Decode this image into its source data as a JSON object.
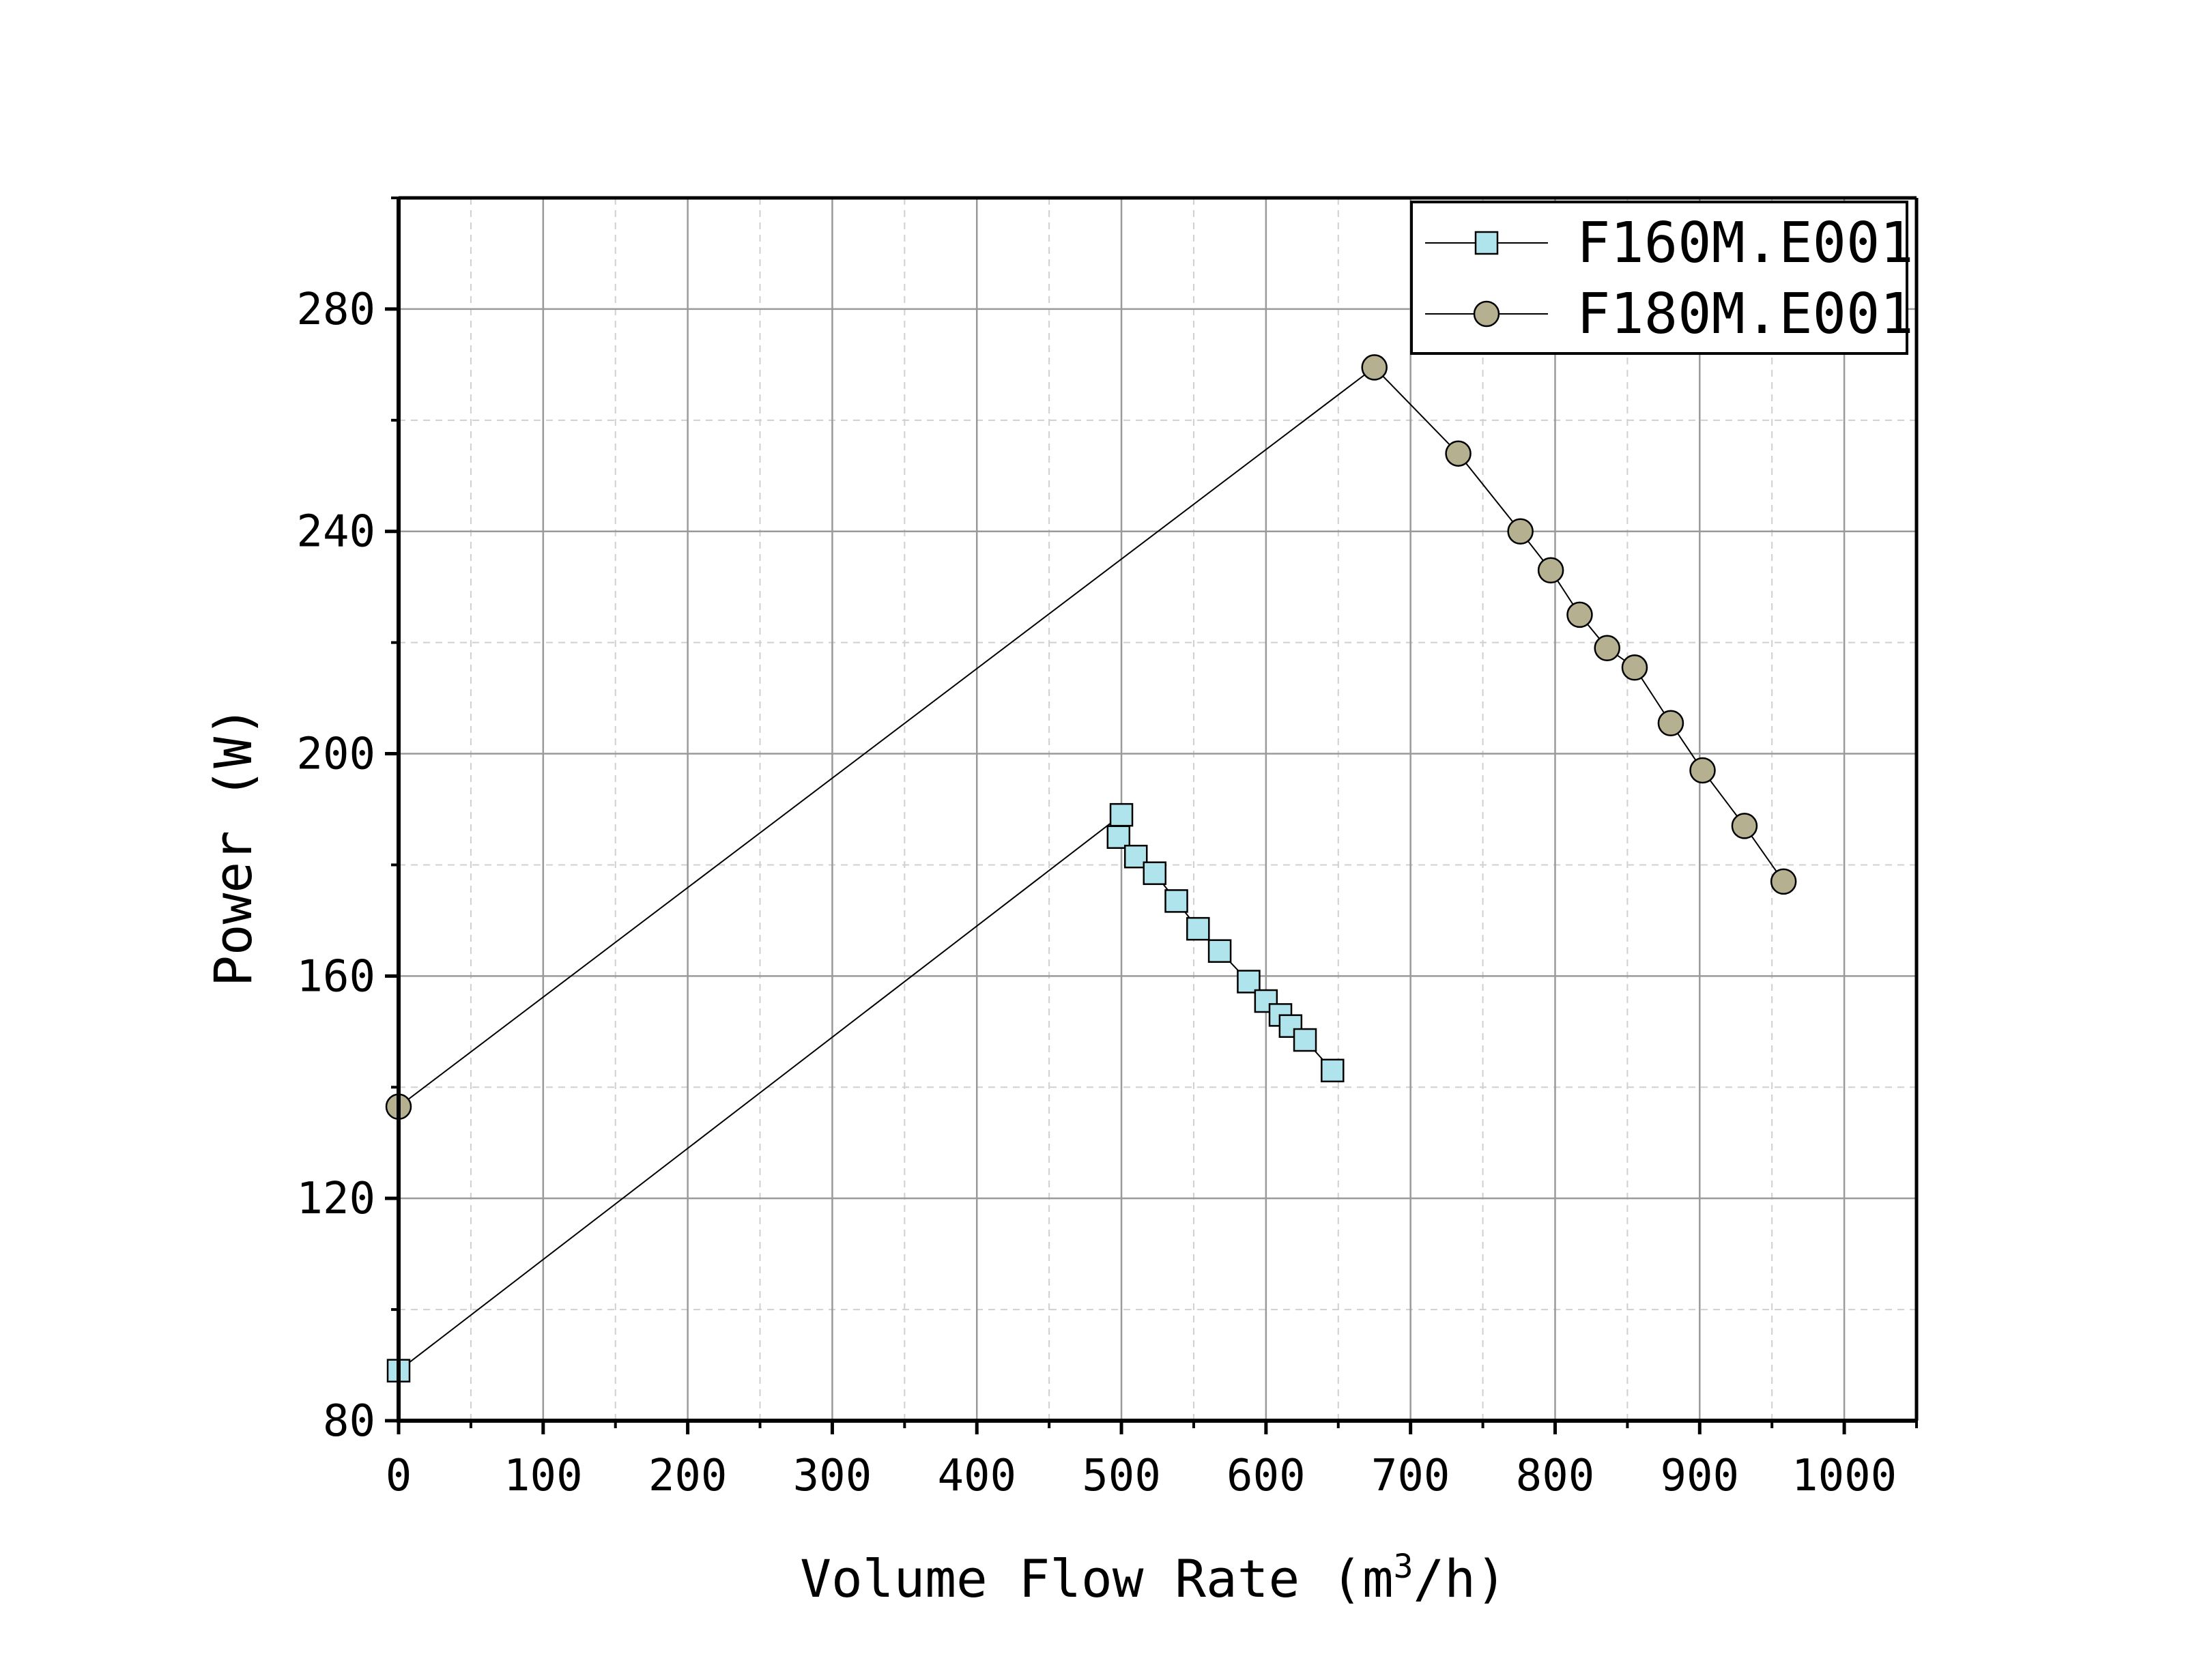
{
  "chart_data": {
    "type": "line",
    "title": "",
    "xlabel": "Volume Flow Rate (m",
    "xlabel_sup": "3",
    "xlabel_tail": "/h)",
    "ylabel": "Power (W)",
    "xlim": [
      0,
      1050
    ],
    "ylim": [
      80,
      300
    ],
    "x_ticks": [
      0,
      100,
      200,
      300,
      400,
      500,
      600,
      700,
      800,
      900,
      1000
    ],
    "y_ticks": [
      80,
      120,
      160,
      200,
      240,
      280
    ],
    "grid": true,
    "legend_position": "top-right",
    "series": [
      {
        "name": "F160M.E001",
        "marker": "square",
        "color": "#b0e4ec",
        "x": [
          0,
          500,
          498,
          510,
          523,
          538,
          553,
          568,
          588,
          600,
          610,
          617,
          627,
          646
        ],
        "y": [
          89,
          189,
          185,
          181.5,
          178.5,
          173.5,
          168.5,
          164.5,
          159,
          155.5,
          153,
          151,
          148.5,
          143
        ]
      },
      {
        "name": "F180M.E001",
        "marker": "circle",
        "color": "#b4b090",
        "x": [
          0,
          675,
          733,
          776,
          797,
          817,
          836,
          855,
          880,
          902,
          931,
          958
        ],
        "y": [
          136.5,
          269.5,
          254,
          240,
          233,
          225,
          219,
          215.5,
          205.5,
          197,
          187,
          177
        ]
      }
    ]
  }
}
